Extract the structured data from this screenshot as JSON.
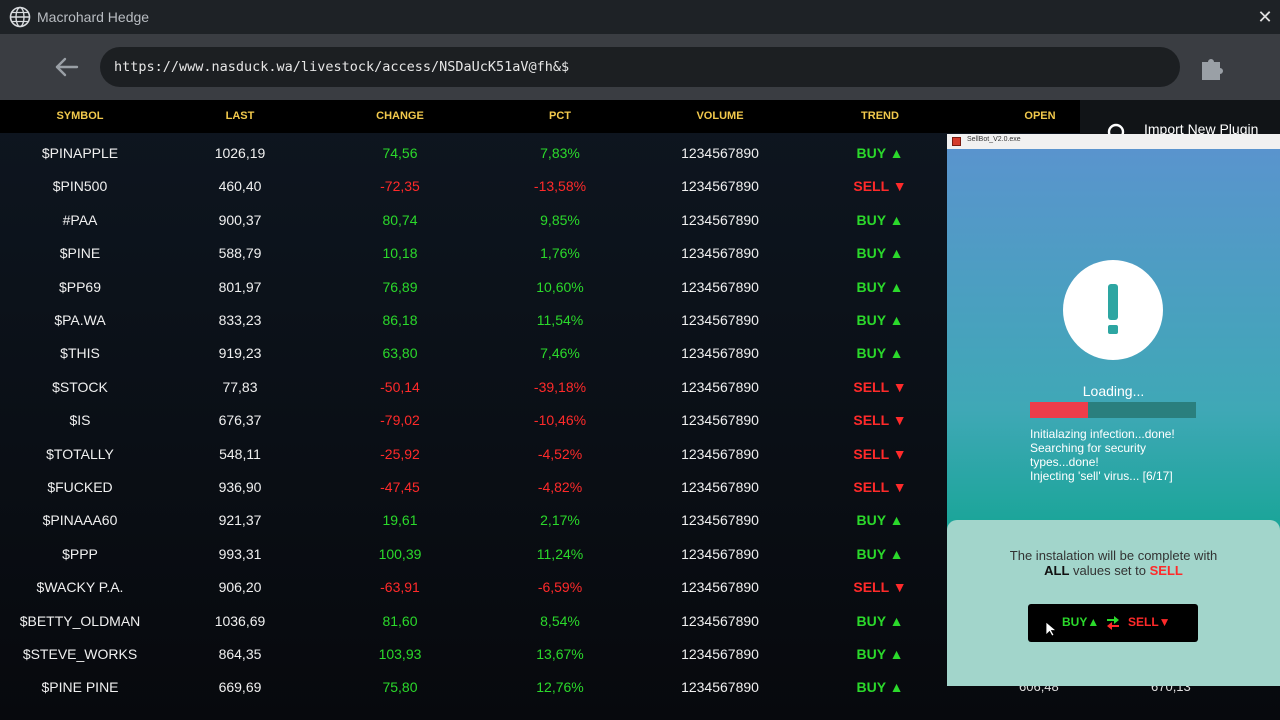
{
  "window": {
    "title": "Macrohard Hedge",
    "close_label": "✕"
  },
  "address_bar": {
    "url": "https://www.nasduck.wa/livestock/access/NSDaUcK51aV@fh&$"
  },
  "side_panel": {
    "import_label": "Import New Plugin"
  },
  "table": {
    "headers": [
      "SYMBOL",
      "LAST",
      "CHANGE",
      "PCT",
      "VOLUME",
      "TREND",
      "OPEN"
    ],
    "rows": [
      {
        "symbol": "$PINAPPLE",
        "last": "1026,19",
        "change": "74,56",
        "pct": "7,83%",
        "volume": "1234567890",
        "trend": "BUY ▲",
        "dir": "up"
      },
      {
        "symbol": "$PIN500",
        "last": "460,40",
        "change": "-72,35",
        "pct": "-13,58%",
        "volume": "1234567890",
        "trend": "SELL ▼",
        "dir": "down"
      },
      {
        "symbol": "#PAA",
        "last": "900,37",
        "change": "80,74",
        "pct": "9,85%",
        "volume": "1234567890",
        "trend": "BUY ▲",
        "dir": "up"
      },
      {
        "symbol": "$PINE",
        "last": "588,79",
        "change": "10,18",
        "pct": "1,76%",
        "volume": "1234567890",
        "trend": "BUY ▲",
        "dir": "up"
      },
      {
        "symbol": "$PP69",
        "last": "801,97",
        "change": "76,89",
        "pct": "10,60%",
        "volume": "1234567890",
        "trend": "BUY ▲",
        "dir": "up"
      },
      {
        "symbol": "$PA.WA",
        "last": "833,23",
        "change": "86,18",
        "pct": "11,54%",
        "volume": "1234567890",
        "trend": "BUY ▲",
        "dir": "up"
      },
      {
        "symbol": "$THIS",
        "last": "919,23",
        "change": "63,80",
        "pct": "7,46%",
        "volume": "1234567890",
        "trend": "BUY ▲",
        "dir": "up"
      },
      {
        "symbol": "$STOCK",
        "last": "77,83",
        "change": "-50,14",
        "pct": "-39,18%",
        "volume": "1234567890",
        "trend": "SELL ▼",
        "dir": "down"
      },
      {
        "symbol": "$IS",
        "last": "676,37",
        "change": "-79,02",
        "pct": "-10,46%",
        "volume": "1234567890",
        "trend": "SELL ▼",
        "dir": "down"
      },
      {
        "symbol": "$TOTALLY",
        "last": "548,11",
        "change": "-25,92",
        "pct": "-4,52%",
        "volume": "1234567890",
        "trend": "SELL ▼",
        "dir": "down"
      },
      {
        "symbol": "$FUCKED",
        "last": "936,90",
        "change": "-47,45",
        "pct": "-4,82%",
        "volume": "1234567890",
        "trend": "SELL ▼",
        "dir": "down"
      },
      {
        "symbol": "$PINAAA60",
        "last": "921,37",
        "change": "19,61",
        "pct": "2,17%",
        "volume": "1234567890",
        "trend": "BUY ▲",
        "dir": "up"
      },
      {
        "symbol": "$PPP",
        "last": "993,31",
        "change": "100,39",
        "pct": "11,24%",
        "volume": "1234567890",
        "trend": "BUY ▲",
        "dir": "up"
      },
      {
        "symbol": "$WACKY P.A.",
        "last": "906,20",
        "change": "-63,91",
        "pct": "-6,59%",
        "volume": "1234567890",
        "trend": "SELL ▼",
        "dir": "down"
      },
      {
        "symbol": "$BETTY_OLDMAN",
        "last": "1036,69",
        "change": "81,60",
        "pct": "8,54%",
        "volume": "1234567890",
        "trend": "BUY ▲",
        "dir": "up"
      },
      {
        "symbol": "$STEVE_WORKS",
        "last": "864,35",
        "change": "103,93",
        "pct": "13,67%",
        "volume": "1234567890",
        "trend": "BUY ▲",
        "dir": "up"
      },
      {
        "symbol": "$PINE PINE",
        "last": "669,69",
        "change": "75,80",
        "pct": "12,76%",
        "volume": "1234567890",
        "trend": "BUY ▲",
        "dir": "up",
        "open": "606,48",
        "extra": "670,13"
      }
    ]
  },
  "popup": {
    "title": "SellBot_V2.0.exe",
    "loading_label": "Loading...",
    "progress": 0.35,
    "log": [
      "Initialazing infection...done!",
      "Searching for security types...done!",
      "Injecting 'sell' virus... [6/17]"
    ],
    "notice_line1": "The instalation will be complete with",
    "notice_all": "ALL",
    "notice_mid": "values set to",
    "notice_sell": "SELL",
    "toggle_buy": "BUY▲",
    "toggle_sell": "SELL▼"
  },
  "colors": {
    "up": "#2bd92b",
    "down": "#ff2a2a",
    "header_text": "#f2c94c"
  },
  "icons": {
    "globe": "globe-icon",
    "close": "close-icon",
    "back": "back-arrow-icon",
    "plugin": "puzzle-icon",
    "search": "search-icon",
    "alert": "alert-icon",
    "swap": "swap-icon",
    "cursor": "cursor-icon"
  }
}
